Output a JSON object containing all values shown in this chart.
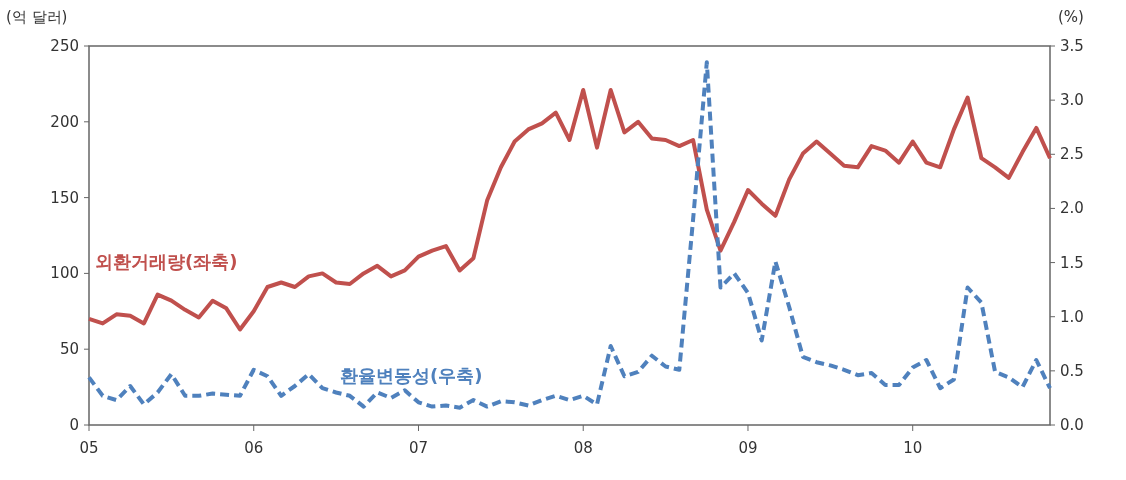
{
  "chart_data": {
    "type": "line",
    "ylabel": "(억 달러)",
    "y2label": "(%)",
    "x": [
      "2005-01",
      "2005-02",
      "2005-03",
      "2005-04",
      "2005-05",
      "2005-06",
      "2005-07",
      "2005-08",
      "2005-09",
      "2005-10",
      "2005-11",
      "2005-12",
      "2006-01",
      "2006-02",
      "2006-03",
      "2006-04",
      "2006-05",
      "2006-06",
      "2006-07",
      "2006-08",
      "2006-09",
      "2006-10",
      "2006-11",
      "2006-12",
      "2007-01",
      "2007-02",
      "2007-03",
      "2007-04",
      "2007-05",
      "2007-06",
      "2007-07",
      "2007-08",
      "2007-09",
      "2007-10",
      "2007-11",
      "2007-12",
      "2008-01",
      "2008-02",
      "2008-03",
      "2008-04",
      "2008-05",
      "2008-06",
      "2008-07",
      "2008-08",
      "2008-09",
      "2008-10",
      "2008-11",
      "2008-12",
      "2009-01",
      "2009-02",
      "2009-03",
      "2009-04",
      "2009-05",
      "2009-06",
      "2009-07",
      "2009-08",
      "2009-09",
      "2009-10",
      "2009-11",
      "2009-12",
      "2010-01",
      "2010-02",
      "2010-03",
      "2010-04",
      "2010-05",
      "2010-06",
      "2010-07",
      "2010-08",
      "2010-09",
      "2010-10",
      "2010-11"
    ],
    "series": [
      {
        "name": "외환거래량(좌축)",
        "color": "#c0504d",
        "line_style": "solid",
        "values": [
          70,
          67,
          73,
          72,
          67,
          86,
          82,
          76,
          71,
          82,
          77,
          63,
          75,
          91,
          94,
          91,
          98,
          100,
          94,
          93,
          100,
          105,
          98,
          102,
          111,
          115,
          118,
          102,
          110,
          148,
          170,
          187,
          195,
          199,
          206,
          188,
          221,
          183,
          221,
          193,
          200,
          189,
          188,
          184,
          188,
          142,
          115,
          134,
          155,
          146,
          138,
          162,
          179,
          187,
          179,
          171,
          170,
          184,
          181,
          173,
          187,
          173,
          170,
          195,
          216,
          176,
          170,
          163,
          180,
          196,
          176
        ]
      },
      {
        "name": "환율변동성(우축)",
        "color": "#4f81bd",
        "axis": "y2",
        "line_style": "dashed",
        "values": [
          0.44,
          0.27,
          0.23,
          0.36,
          0.19,
          0.3,
          0.47,
          0.27,
          0.27,
          0.29,
          0.28,
          0.27,
          0.51,
          0.45,
          0.27,
          0.36,
          0.47,
          0.34,
          0.3,
          0.27,
          0.17,
          0.3,
          0.25,
          0.32,
          0.21,
          0.17,
          0.18,
          0.16,
          0.23,
          0.17,
          0.22,
          0.21,
          0.18,
          0.23,
          0.27,
          0.23,
          0.27,
          0.19,
          0.73,
          0.45,
          0.49,
          0.64,
          0.54,
          0.51,
          1.9,
          3.35,
          1.27,
          1.4,
          1.22,
          0.78,
          1.51,
          1.09,
          0.63,
          0.58,
          0.55,
          0.51,
          0.46,
          0.48,
          0.37,
          0.37,
          0.53,
          0.6,
          0.34,
          0.42,
          1.27,
          1.13,
          0.49,
          0.44,
          0.35,
          0.6,
          0.34
        ]
      }
    ],
    "xlim": [
      "2005-01",
      "2010-11"
    ],
    "xticks": [
      {
        "value": "2005-01",
        "label": "05"
      },
      {
        "value": "2006-01",
        "label": "06"
      },
      {
        "value": "2007-01",
        "label": "07"
      },
      {
        "value": "2008-01",
        "label": "08"
      },
      {
        "value": "2009-01",
        "label": "09"
      },
      {
        "value": "2010-01",
        "label": "10"
      }
    ],
    "ylim": [
      0,
      250
    ],
    "yticks": [
      0,
      50,
      100,
      150,
      200,
      250
    ],
    "y2lim": [
      0,
      3.5
    ],
    "y2ticks": [
      {
        "value": 0,
        "label": "0.0"
      },
      {
        "value": 0.5,
        "label": "0.5"
      },
      {
        "value": 1,
        "label": "1.0"
      },
      {
        "value": 1.5,
        "label": "1.5"
      },
      {
        "value": 2,
        "label": "2.0"
      },
      {
        "value": 2.5,
        "label": "2.5"
      },
      {
        "value": 3,
        "label": "3.0"
      },
      {
        "value": 3.5,
        "label": "3.5"
      }
    ]
  }
}
